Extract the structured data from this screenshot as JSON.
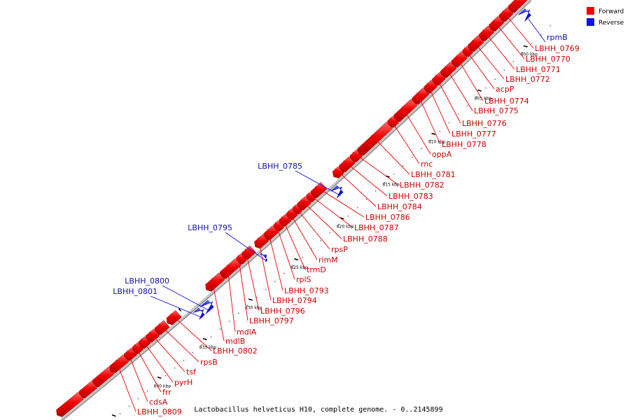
{
  "caption": "Lactobacillus helveticus H10, complete genome. - 0..2145899",
  "legend": [
    {
      "label": "Forward",
      "color": "#ee0000"
    },
    {
      "label": "Reverse",
      "color": "#1010ee"
    }
  ],
  "ticks": [
    {
      "kbp": 800,
      "label": "800 kbp"
    },
    {
      "kbp": 805,
      "label": "805 kbp"
    },
    {
      "kbp": 810,
      "label": "810 kbp"
    },
    {
      "kbp": 815,
      "label": "815 kbp"
    },
    {
      "kbp": 820,
      "label": "820 kbp"
    },
    {
      "kbp": 825,
      "label": "825 kbp"
    },
    {
      "kbp": 830,
      "label": "830 kbp"
    },
    {
      "kbp": 835,
      "label": "835 kbp"
    },
    {
      "kbp": 840,
      "label": "840 kbp"
    },
    {
      "kbp": 845,
      "label": "845 kbp"
    }
  ],
  "forward_labels": [
    "LBHH_0769",
    "LBHH_0770",
    "LBHH_0771",
    "LBHH_0772",
    "acpP",
    "LBHH_0774",
    "LBHH_0775",
    "LBHH_0776",
    "LBHH_0777",
    "LBHH_0778",
    "oppA",
    "rnc",
    "LBHH_0781",
    "LBHH_0782",
    "LBHH_0783",
    "LBHH_0784",
    "LBHH_0786",
    "LBHH_0787",
    "LBHH_0788",
    "rpsP",
    "rimM",
    "trmD",
    "rplS",
    "LBHH_0793",
    "LBHH_0794",
    "LBHH_0796",
    "LBHH_0797",
    "mdlA",
    "mdlB",
    "LBHH_0802",
    "rpsB",
    "tsf",
    "pyrH",
    "frr",
    "cdsA",
    "LBHH_0809"
  ],
  "reverse_labels": [
    "rpmB",
    "LBHH_0785",
    "LBHH_0795",
    "LBHH_0800",
    "LBHH_0801"
  ]
}
